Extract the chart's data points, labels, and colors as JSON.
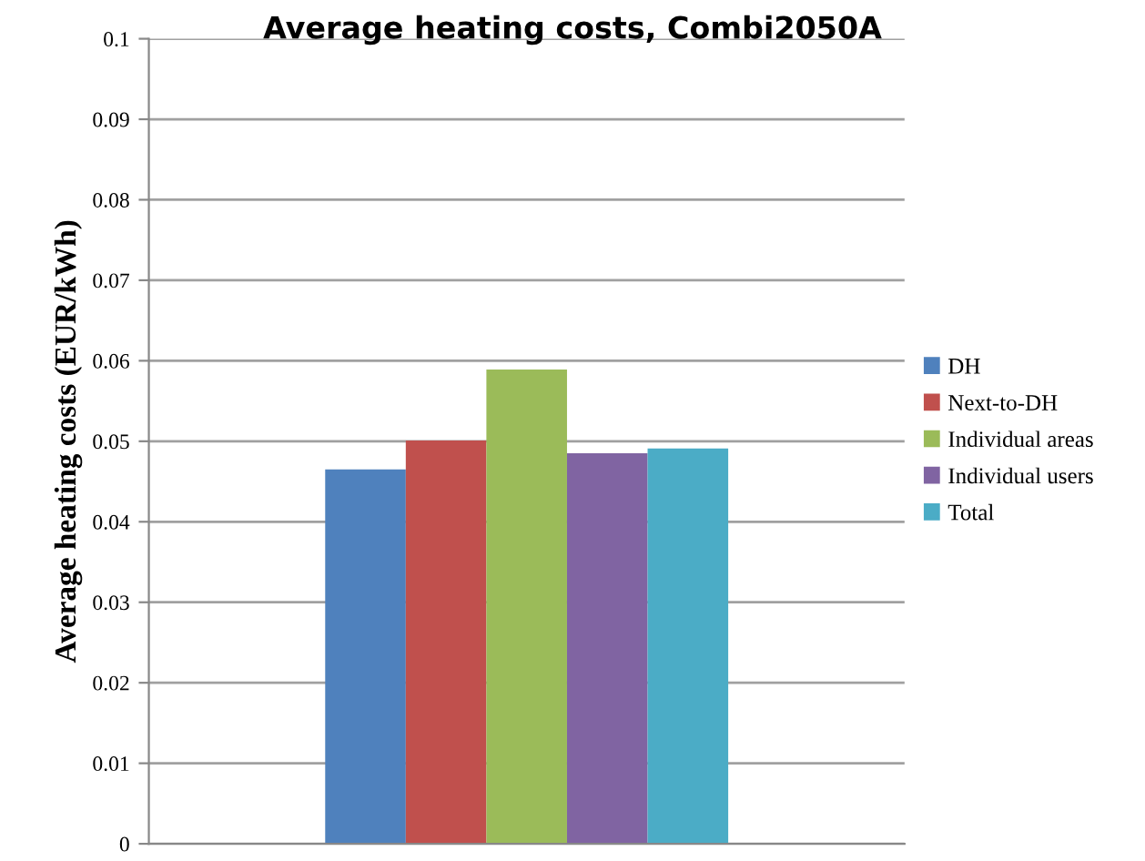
{
  "chart_data": {
    "type": "bar",
    "title": "Average heating costs, Combi2050A",
    "ylabel": "Average heating costs (EUR/kWh)",
    "categories": [
      null
    ],
    "series": [
      {
        "name": "DH",
        "color": "#4f81bd",
        "values": [
          0.0465
        ]
      },
      {
        "name": "Next-to-DH",
        "color": "#c0504d",
        "values": [
          0.0501
        ]
      },
      {
        "name": "Individual areas",
        "color": "#9bbb59",
        "values": [
          0.0589
        ]
      },
      {
        "name": "Individual users",
        "color": "#8064a2",
        "values": [
          0.0485
        ]
      },
      {
        "name": "Total",
        "color": "#4bacc6",
        "values": [
          0.0491
        ]
      }
    ],
    "ylim": [
      0,
      0.1
    ],
    "yticks": [
      0,
      0.01,
      0.02,
      0.03,
      0.04,
      0.05,
      0.06,
      0.07,
      0.08,
      0.09,
      0.1
    ],
    "grid": "y",
    "legend": "right"
  }
}
